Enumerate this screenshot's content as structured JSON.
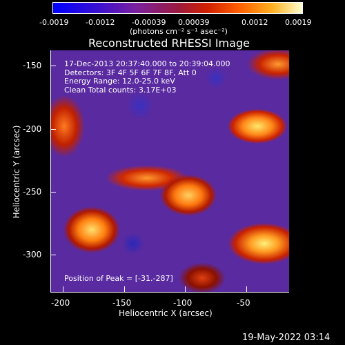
{
  "colorbar": {
    "ticks": [
      "-0.0019",
      "-0.0012",
      "-0.00039",
      "0.00039",
      "0.0012",
      "0.0019"
    ],
    "unit_label": "(photons cm⁻² s⁻¹ asec⁻²)"
  },
  "plot": {
    "title": "Reconstructed RHESSI Image",
    "xlabel": "Heliocentric X (arcsec)",
    "ylabel": "Heliocentric Y (arcsec)",
    "x_ticks": [
      "-200",
      "-150",
      "-100",
      "-50"
    ],
    "y_ticks": [
      "-150",
      "-200",
      "-250",
      "-300"
    ],
    "info": {
      "time": "17-Dec-2013 20:37:40.000 to 20:39:04.000",
      "detectors": "Detectors: 3F 4F 5F 6F 7F 8F, Att 0",
      "energy": "Energy Range: 12.0-25.0 keV",
      "method": "Clean     Total counts: 3.17E+03"
    },
    "peak": "Position of Peak = [-31.-287]"
  },
  "timestamp": "19-May-2022 03:14"
}
